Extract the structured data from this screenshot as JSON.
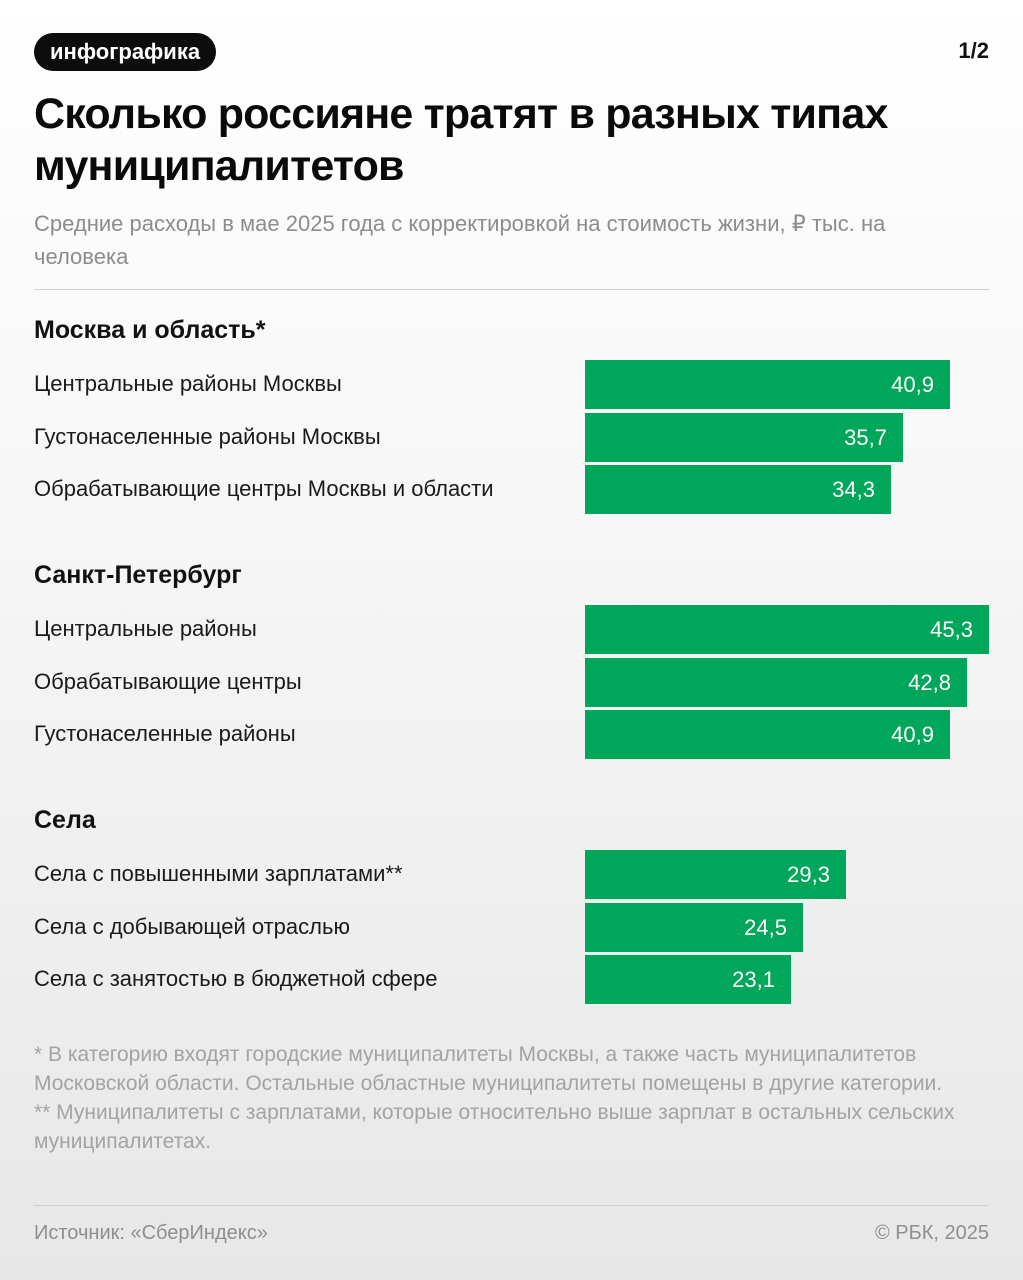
{
  "header": {
    "badge": "инфографика",
    "page": "1/2",
    "title": "Сколько россияне тратят в разных типах муниципалитетов",
    "subtitle": "Средние расходы в мае 2025 года с корректировкой на стоимость жизни, ₽ тыс. на человека"
  },
  "chart_data": {
    "type": "bar",
    "orientation": "horizontal",
    "bar_color": "#00a65a",
    "xlim": [
      0,
      45.3
    ],
    "groups": [
      {
        "title": "Москва и область*",
        "items": [
          {
            "label": "Центральные районы Москвы",
            "value": 40.9,
            "value_label": "40,9"
          },
          {
            "label": "Густонаселенные районы Москвы",
            "value": 35.7,
            "value_label": "35,7"
          },
          {
            "label": "Обрабатывающие центры Москвы и области",
            "value": 34.3,
            "value_label": "34,3"
          }
        ]
      },
      {
        "title": "Санкт-Петербург",
        "items": [
          {
            "label": "Центральные районы",
            "value": 45.3,
            "value_label": "45,3"
          },
          {
            "label": "Обрабатывающие центры",
            "value": 42.8,
            "value_label": "42,8"
          },
          {
            "label": "Густонаселенные районы",
            "value": 40.9,
            "value_label": "40,9"
          }
        ]
      },
      {
        "title": "Села",
        "items": [
          {
            "label": "Села с повышенными зарплатами**",
            "value": 29.3,
            "value_label": "29,3"
          },
          {
            "label": "Села с добывающей отраслью",
            "value": 24.5,
            "value_label": "24,5"
          },
          {
            "label": "Села с занятостью в бюджетной сфере",
            "value": 23.1,
            "value_label": "23,1"
          }
        ]
      }
    ]
  },
  "footnotes": [
    "* В категорию входят городские муниципалитеты Москвы, а также часть муниципалитетов Московской области. Остальные областные муниципалитеты помещены в другие категории.",
    "** Муниципалитеты с зарплатами, которые относительно выше зарплат в остальных сельских муниципалитетах."
  ],
  "footer": {
    "source": "Источник: «СберИндекс»",
    "copyright": "© РБК, 2025"
  }
}
